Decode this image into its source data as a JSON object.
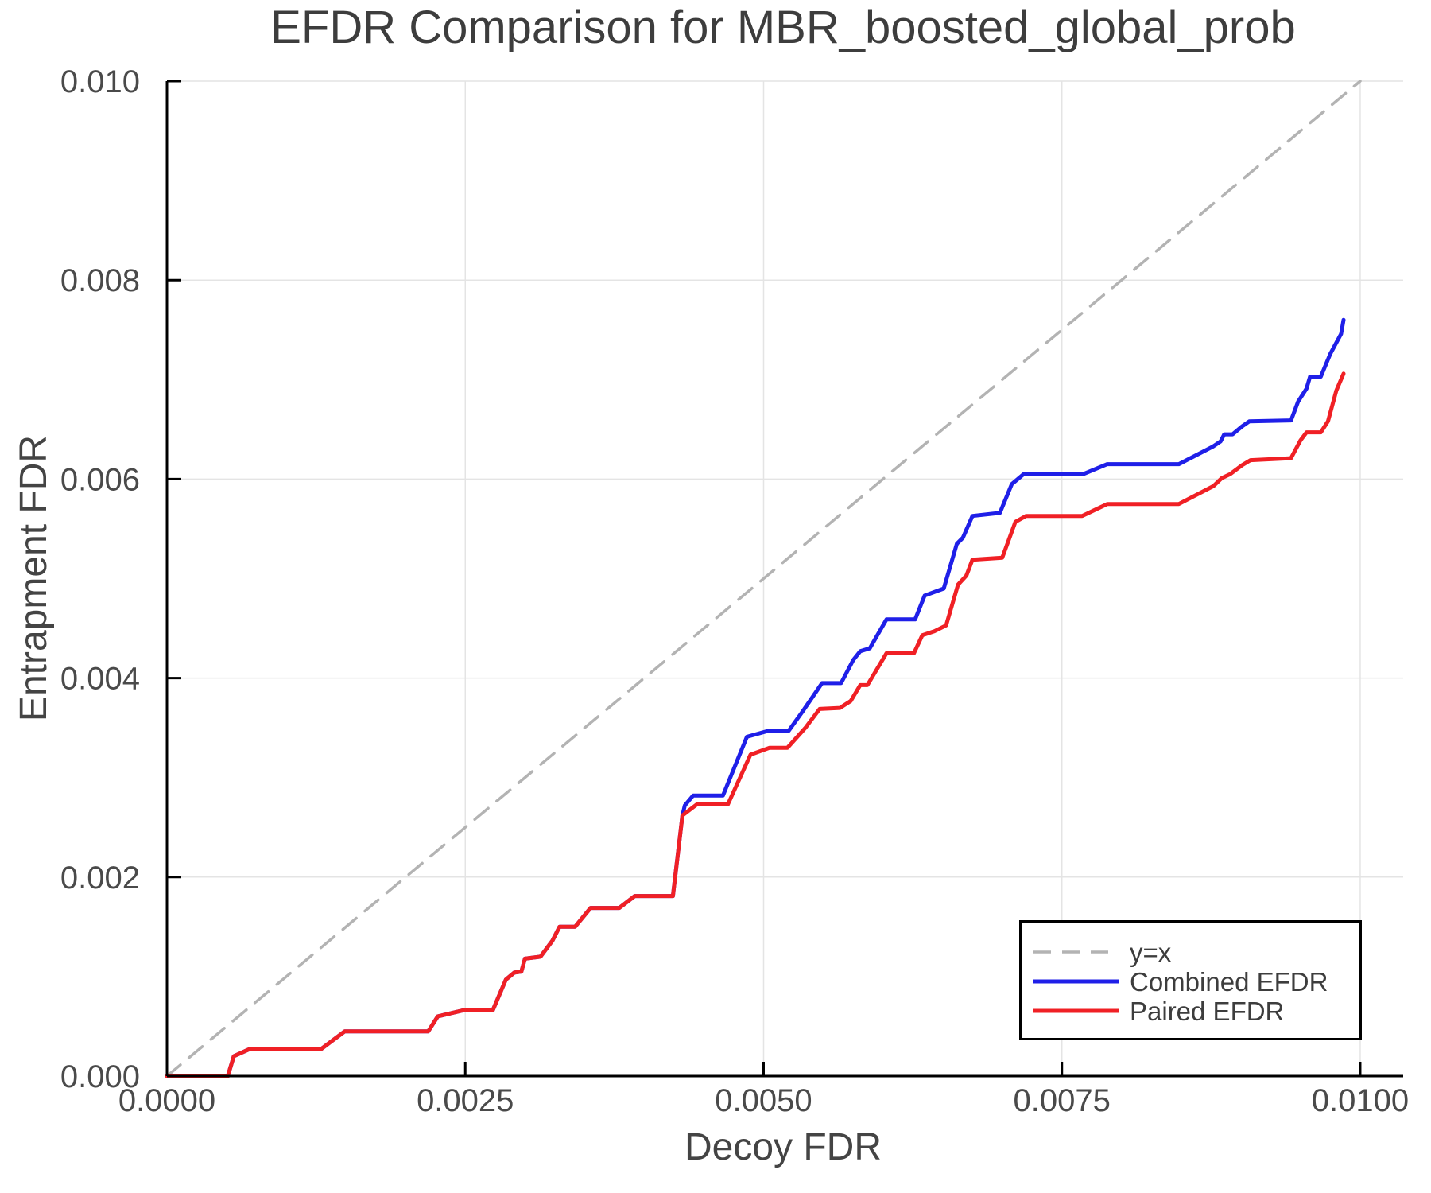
{
  "chart_data": {
    "type": "line",
    "title": "EFDR Comparison for MBR_boosted_global_prob",
    "xlabel": "Decoy FDR",
    "ylabel": "Entrapment FDR",
    "xlim": [
      0,
      0.01036
    ],
    "ylim": [
      0,
      0.01
    ],
    "grid": true,
    "legend_position": "bottom-right",
    "x_ticks": {
      "values": [
        0,
        0.0025,
        0.005,
        0.0075,
        0.01
      ],
      "labels": [
        "0.0000",
        "0.0025",
        "0.0050",
        "0.0075",
        "0.0100"
      ]
    },
    "y_ticks": {
      "values": [
        0,
        0.002,
        0.004,
        0.006,
        0.008,
        0.01
      ],
      "labels": [
        "0.000",
        "0.002",
        "0.004",
        "0.006",
        "0.008",
        "0.010"
      ]
    },
    "colors": {
      "grid": "#e4e4e4",
      "spine": "#000000",
      "identity": "#b3b3b3",
      "combined": "#1f1fe8",
      "paired": "#f02025"
    },
    "series": [
      {
        "name": "y=x",
        "dash": true,
        "color": "#b3b3b3",
        "points": [
          [
            0,
            0
          ],
          [
            0.01,
            0.01
          ]
        ]
      },
      {
        "name": "Combined EFDR",
        "dash": false,
        "color": "#1f1fe8",
        "points": [
          [
            0,
            0
          ],
          [
            0.00051,
            0
          ],
          [
            0.00056,
            0.0002
          ],
          [
            0.00069,
            0.00027
          ],
          [
            0.00129,
            0.00027
          ],
          [
            0.00149,
            0.00045
          ],
          [
            0.00219,
            0.00045
          ],
          [
            0.00227,
            0.0006
          ],
          [
            0.00248,
            0.00066
          ],
          [
            0.00273,
            0.00066
          ],
          [
            0.00284,
            0.00097
          ],
          [
            0.00291,
            0.00104
          ],
          [
            0.00297,
            0.00105
          ],
          [
            0.003,
            0.00118
          ],
          [
            0.00313,
            0.0012
          ],
          [
            0.00323,
            0.00136
          ],
          [
            0.00329,
            0.0015
          ],
          [
            0.00342,
            0.0015
          ],
          [
            0.00355,
            0.00169
          ],
          [
            0.00379,
            0.00169
          ],
          [
            0.00392,
            0.00181
          ],
          [
            0.00424,
            0.00181
          ],
          [
            0.00432,
            0.00262
          ],
          [
            0.00434,
            0.00272
          ],
          [
            0.00441,
            0.00282
          ],
          [
            0.00466,
            0.00282
          ],
          [
            0.00486,
            0.00341
          ],
          [
            0.00504,
            0.00347
          ],
          [
            0.00521,
            0.00347
          ],
          [
            0.00533,
            0.00367
          ],
          [
            0.00549,
            0.00395
          ],
          [
            0.00565,
            0.00395
          ],
          [
            0.00575,
            0.00418
          ],
          [
            0.00581,
            0.00427
          ],
          [
            0.00589,
            0.0043
          ],
          [
            0.00603,
            0.00459
          ],
          [
            0.00627,
            0.00459
          ],
          [
            0.00635,
            0.00483
          ],
          [
            0.00651,
            0.0049
          ],
          [
            0.00662,
            0.00535
          ],
          [
            0.00667,
            0.00541
          ],
          [
            0.00675,
            0.00563
          ],
          [
            0.00698,
            0.00566
          ],
          [
            0.00708,
            0.00595
          ],
          [
            0.00718,
            0.00605
          ],
          [
            0.00768,
            0.00605
          ],
          [
            0.00788,
            0.00615
          ],
          [
            0.00848,
            0.00615
          ],
          [
            0.00877,
            0.00633
          ],
          [
            0.00883,
            0.00638
          ],
          [
            0.00886,
            0.00645
          ],
          [
            0.00893,
            0.00645
          ],
          [
            0.00901,
            0.00653
          ],
          [
            0.00907,
            0.00658
          ],
          [
            0.00942,
            0.00659
          ],
          [
            0.00948,
            0.00678
          ],
          [
            0.00955,
            0.00691
          ],
          [
            0.00958,
            0.00703
          ],
          [
            0.00967,
            0.00703
          ],
          [
            0.00975,
            0.00726
          ],
          [
            0.00984,
            0.00746
          ],
          [
            0.00986,
            0.0076
          ]
        ]
      },
      {
        "name": "Paired EFDR",
        "dash": false,
        "color": "#f02025",
        "points": [
          [
            0,
            0
          ],
          [
            0.00051,
            0
          ],
          [
            0.00056,
            0.0002
          ],
          [
            0.00069,
            0.00027
          ],
          [
            0.00129,
            0.00027
          ],
          [
            0.00149,
            0.00045
          ],
          [
            0.00219,
            0.00045
          ],
          [
            0.00227,
            0.0006
          ],
          [
            0.00248,
            0.00066
          ],
          [
            0.00273,
            0.00066
          ],
          [
            0.00284,
            0.00097
          ],
          [
            0.00291,
            0.00104
          ],
          [
            0.00297,
            0.00105
          ],
          [
            0.003,
            0.00118
          ],
          [
            0.00313,
            0.0012
          ],
          [
            0.00323,
            0.00136
          ],
          [
            0.00329,
            0.0015
          ],
          [
            0.00342,
            0.0015
          ],
          [
            0.00355,
            0.00169
          ],
          [
            0.00379,
            0.00169
          ],
          [
            0.00392,
            0.00181
          ],
          [
            0.00424,
            0.00181
          ],
          [
            0.00432,
            0.00262
          ],
          [
            0.00444,
            0.00273
          ],
          [
            0.0047,
            0.00273
          ],
          [
            0.00489,
            0.00323
          ],
          [
            0.00505,
            0.0033
          ],
          [
            0.0052,
            0.0033
          ],
          [
            0.00535,
            0.0035
          ],
          [
            0.00547,
            0.00369
          ],
          [
            0.00564,
            0.0037
          ],
          [
            0.00573,
            0.00377
          ],
          [
            0.00581,
            0.00393
          ],
          [
            0.00587,
            0.00393
          ],
          [
            0.00603,
            0.00425
          ],
          [
            0.00626,
            0.00425
          ],
          [
            0.00633,
            0.00443
          ],
          [
            0.00643,
            0.00447
          ],
          [
            0.00653,
            0.00453
          ],
          [
            0.00663,
            0.00494
          ],
          [
            0.0067,
            0.00503
          ],
          [
            0.00675,
            0.00519
          ],
          [
            0.007,
            0.00521
          ],
          [
            0.00711,
            0.00557
          ],
          [
            0.0072,
            0.00563
          ],
          [
            0.00767,
            0.00563
          ],
          [
            0.00788,
            0.00575
          ],
          [
            0.00848,
            0.00575
          ],
          [
            0.00877,
            0.00593
          ],
          [
            0.00884,
            0.00601
          ],
          [
            0.00891,
            0.00605
          ],
          [
            0.00901,
            0.00614
          ],
          [
            0.00908,
            0.00619
          ],
          [
            0.00942,
            0.00621
          ],
          [
            0.0095,
            0.00639
          ],
          [
            0.00955,
            0.00647
          ],
          [
            0.00967,
            0.00647
          ],
          [
            0.00973,
            0.00658
          ],
          [
            0.0098,
            0.00689
          ],
          [
            0.00986,
            0.00706
          ]
        ]
      }
    ]
  }
}
